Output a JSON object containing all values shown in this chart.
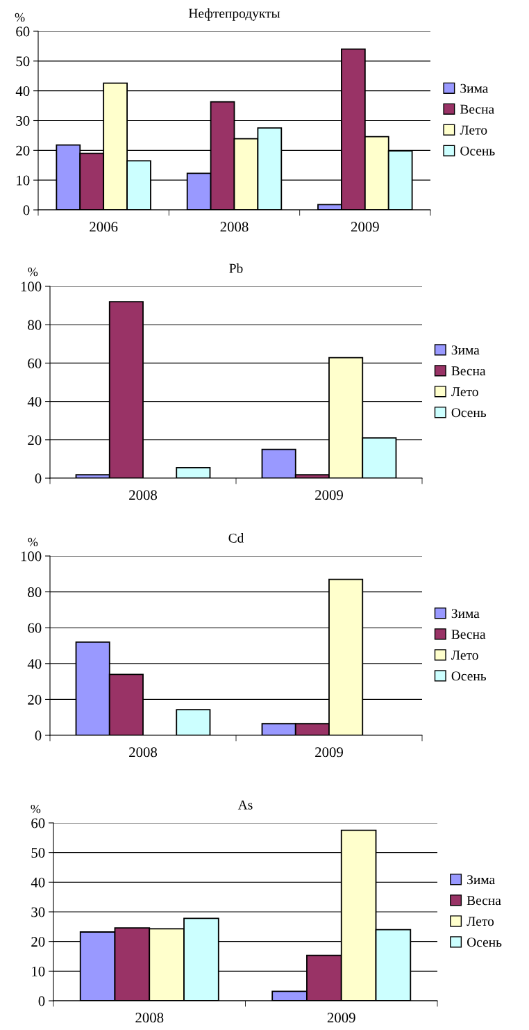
{
  "chart_data": [
    {
      "type": "bar",
      "title": "Нефтепродукты",
      "ylabel": "%",
      "categories": [
        "2006",
        "2008",
        "2009"
      ],
      "ylim": [
        0,
        60
      ],
      "yticks": [
        0,
        10,
        20,
        30,
        40,
        50,
        60
      ],
      "grid": "y",
      "legend": "right",
      "series": [
        {
          "name": "Зима",
          "color": "#9999ff",
          "values": [
            21.8,
            12.3,
            1.8
          ]
        },
        {
          "name": "Весна",
          "color": "#993366",
          "values": [
            19,
            36.3,
            54
          ]
        },
        {
          "name": "Лето",
          "color": "#ffffcc",
          "values": [
            42.6,
            23.9,
            24.6
          ]
        },
        {
          "name": "Осень",
          "color": "#ccffff",
          "values": [
            16.5,
            27.5,
            19.8
          ]
        }
      ]
    },
    {
      "type": "bar",
      "title": "Pb",
      "ylabel": "%",
      "categories": [
        "2008",
        "2009"
      ],
      "ylim": [
        0,
        100
      ],
      "yticks": [
        0,
        20,
        40,
        60,
        80,
        100
      ],
      "grid": "y",
      "legend": "right",
      "series": [
        {
          "name": "Зима",
          "color": "#9999ff",
          "values": [
            1.8,
            15
          ]
        },
        {
          "name": "Весна",
          "color": "#993366",
          "values": [
            92,
            1.8
          ]
        },
        {
          "name": "Лето",
          "color": "#ffffcc",
          "values": [
            null,
            62.8
          ]
        },
        {
          "name": "Осень",
          "color": "#ccffff",
          "values": [
            5.5,
            21
          ]
        }
      ]
    },
    {
      "type": "bar",
      "title": "Cd",
      "ylabel": "%",
      "categories": [
        "2008",
        "2009"
      ],
      "ylim": [
        0,
        100
      ],
      "yticks": [
        0,
        20,
        40,
        60,
        80,
        100
      ],
      "grid": "y",
      "legend": "right",
      "series": [
        {
          "name": "Зима",
          "color": "#9999ff",
          "values": [
            52,
            6.5
          ]
        },
        {
          "name": "Весна",
          "color": "#993366",
          "values": [
            34,
            6.5
          ]
        },
        {
          "name": "Лето",
          "color": "#ffffcc",
          "values": [
            null,
            87
          ]
        },
        {
          "name": "Осень",
          "color": "#ccffff",
          "values": [
            14.3,
            null
          ]
        }
      ]
    },
    {
      "type": "bar",
      "title": "As",
      "ylabel": "%",
      "categories": [
        "2008",
        "2009"
      ],
      "ylim": [
        0,
        60
      ],
      "yticks": [
        0,
        10,
        20,
        30,
        40,
        50,
        60
      ],
      "grid": "y",
      "legend": "right",
      "series": [
        {
          "name": "Зима",
          "color": "#9999ff",
          "values": [
            23.2,
            3.2
          ]
        },
        {
          "name": "Весна",
          "color": "#993366",
          "values": [
            24.6,
            15.3
          ]
        },
        {
          "name": "Лето",
          "color": "#ffffcc",
          "values": [
            24.3,
            57.5
          ]
        },
        {
          "name": "Осень",
          "color": "#ccffff",
          "values": [
            27.8,
            24
          ]
        }
      ]
    }
  ]
}
